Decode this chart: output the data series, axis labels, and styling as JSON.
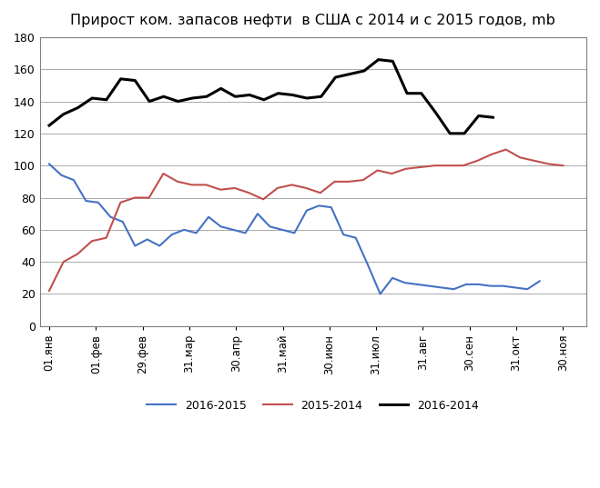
{
  "title": "Прирост ком. запасов нефти  в США с 2014 и с 2015 годов, mb",
  "xlabels": [
    "01.янв",
    "01.фев",
    "29.фев",
    "31.мар",
    "30.апр",
    "31.май",
    "30.июн",
    "31.июл",
    "31.авг",
    "30.сен",
    "31.окт",
    "30.ноя"
  ],
  "ylim": [
    0,
    180
  ],
  "yticks": [
    0,
    20,
    40,
    60,
    80,
    100,
    120,
    140,
    160,
    180
  ],
  "series_2016_2015": [
    101,
    94,
    91,
    78,
    77,
    68,
    65,
    50,
    54,
    50,
    57,
    60,
    58,
    68,
    62,
    60,
    58,
    70,
    62,
    60,
    58,
    72,
    75,
    74,
    57,
    55,
    38,
    20,
    30,
    27,
    26,
    25,
    24,
    23,
    26,
    26,
    25,
    25,
    24,
    23,
    28
  ],
  "series_2015_2014": [
    22,
    40,
    45,
    53,
    55,
    77,
    80,
    80,
    95,
    90,
    88,
    88,
    85,
    86,
    83,
    79,
    86,
    88,
    86,
    83,
    90,
    90,
    91,
    97,
    95,
    98,
    99,
    100,
    100,
    100,
    103,
    107,
    110,
    105,
    103,
    101,
    100
  ],
  "series_2016_2014": [
    125,
    132,
    136,
    142,
    141,
    154,
    153,
    140,
    143,
    140,
    142,
    143,
    148,
    143,
    144,
    141,
    145,
    144,
    142,
    143,
    155,
    157,
    159,
    166,
    165,
    145,
    145,
    133,
    120,
    120,
    131,
    130
  ],
  "color_2016_2015": "#4472C4",
  "color_2015_2014": "#C0504D",
  "color_2016_2014": "#000000",
  "legend_2016_2015": "2016-2015",
  "legend_2015_2014": "2015-2014",
  "legend_2016_2014": "2016-2014",
  "background_color": "#FFFFFF",
  "grid_color": "#AAAAAA",
  "border_color": "#808080"
}
